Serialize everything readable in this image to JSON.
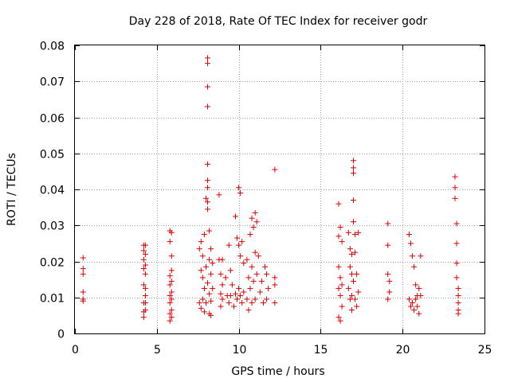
{
  "chart_data": {
    "type": "scatter",
    "title": "Day 228 of 2018, Rate Of TEC Index for receiver godr",
    "xlabel": "GPS time / hours",
    "ylabel": "ROTI / TECUs",
    "xlim": [
      0,
      25
    ],
    "ylim": [
      0,
      0.08
    ],
    "xticks": [
      0,
      5,
      10,
      15,
      20,
      25
    ],
    "xtick_labels": [
      "0",
      "5",
      "10",
      "15",
      "20",
      "25"
    ],
    "yticks": [
      0,
      0.01,
      0.02,
      0.03,
      0.04,
      0.05,
      0.06,
      0.07,
      0.08
    ],
    "ytick_labels": [
      "0",
      "0.01",
      "0.02",
      "0.03",
      "0.04",
      "0.05",
      "0.06",
      "0.07",
      "0.08"
    ],
    "grid": true,
    "marker": "+",
    "color": "#e00000",
    "series": [
      {
        "name": "ROTI",
        "x": [
          0.5,
          0.5,
          0.5,
          0.5,
          0.5,
          0.5,
          4.2,
          4.2,
          4.2,
          4.2,
          4.2,
          4.2,
          4.2,
          4.2,
          4.3,
          4.3,
          4.3,
          4.3,
          4.3,
          4.3,
          4.3,
          4.3,
          5.8,
          5.8,
          5.8,
          5.8,
          5.8,
          5.8,
          5.8,
          5.8,
          5.9,
          5.9,
          5.9,
          5.9,
          5.9,
          5.9,
          5.9,
          5.9,
          7.6,
          7.6,
          7.7,
          7.7,
          7.7,
          7.8,
          7.8,
          7.8,
          7.9,
          7.9,
          7.9,
          8.0,
          8.0,
          8.0,
          8.1,
          8.1,
          8.1,
          8.1,
          8.1,
          8.1,
          8.1,
          8.1,
          8.1,
          8.1,
          8.2,
          8.2,
          8.2,
          8.2,
          8.3,
          8.3,
          8.3,
          8.3,
          8.4,
          8.4,
          8.8,
          8.8,
          8.9,
          8.9,
          8.9,
          9.0,
          9.0,
          9.0,
          9.2,
          9.3,
          9.4,
          9.4,
          9.5,
          9.5,
          9.6,
          9.7,
          9.8,
          9.8,
          9.9,
          9.9,
          10.0,
          10.0,
          10.0,
          10.1,
          10.1,
          10.1,
          10.2,
          10.2,
          10.3,
          10.3,
          10.5,
          10.5,
          10.6,
          10.6,
          10.7,
          10.7,
          10.8,
          10.8,
          10.8,
          10.9,
          10.9,
          11.0,
          11.0,
          11.0,
          11.1,
          11.1,
          11.2,
          11.3,
          11.4,
          11.5,
          11.6,
          11.7,
          11.7,
          11.8,
          12.2,
          12.2,
          12.2,
          12.2,
          16.1,
          16.1,
          16.1,
          16.1,
          16.1,
          16.2,
          16.2,
          16.2,
          16.2,
          16.3,
          16.3,
          16.3,
          16.7,
          16.7,
          16.8,
          16.8,
          16.8,
          16.9,
          16.9,
          16.9,
          16.9,
          17.0,
          17.0,
          17.0,
          17.0,
          17.0,
          17.0,
          17.1,
          17.1,
          17.1,
          17.2,
          17.2,
          17.3,
          17.3,
          19.1,
          19.1,
          19.1,
          19.1,
          19.2,
          19.2,
          20.4,
          20.4,
          20.5,
          20.5,
          20.6,
          20.6,
          20.7,
          20.7,
          20.8,
          20.8,
          20.9,
          20.9,
          21.0,
          21.0,
          21.1,
          21.1,
          23.2,
          23.2,
          23.2,
          23.3,
          23.3,
          23.3,
          23.3,
          23.4,
          23.4,
          23.4,
          23.4,
          23.4
        ],
        "y": [
          0.021,
          0.018,
          0.0165,
          0.0115,
          0.0095,
          0.009,
          0.0245,
          0.023,
          0.0205,
          0.018,
          0.0135,
          0.0085,
          0.006,
          0.0045,
          0.0245,
          0.022,
          0.019,
          0.0165,
          0.0125,
          0.0105,
          0.0085,
          0.0065,
          0.0285,
          0.0255,
          0.016,
          0.0135,
          0.0105,
          0.0085,
          0.0055,
          0.0035,
          0.028,
          0.0215,
          0.0175,
          0.0145,
          0.0115,
          0.0095,
          0.0065,
          0.0045,
          0.0235,
          0.0085,
          0.0255,
          0.0175,
          0.007,
          0.0215,
          0.0155,
          0.0095,
          0.0275,
          0.0125,
          0.006,
          0.0375,
          0.0185,
          0.0085,
          0.0765,
          0.075,
          0.0685,
          0.063,
          0.047,
          0.0425,
          0.0405,
          0.0365,
          0.0345,
          0.014,
          0.0285,
          0.0205,
          0.011,
          0.0055,
          0.0235,
          0.0165,
          0.009,
          0.005,
          0.0195,
          0.0125,
          0.0385,
          0.0205,
          0.0165,
          0.011,
          0.0075,
          0.0205,
          0.0135,
          0.0095,
          0.0155,
          0.0105,
          0.0245,
          0.0085,
          0.0175,
          0.0105,
          0.0135,
          0.0075,
          0.0325,
          0.011,
          0.0265,
          0.0095,
          0.0405,
          0.0245,
          0.0125,
          0.039,
          0.0215,
          0.0105,
          0.0255,
          0.0085,
          0.0195,
          0.0115,
          0.0205,
          0.0095,
          0.0155,
          0.0065,
          0.0275,
          0.0125,
          0.032,
          0.0185,
          0.0085,
          0.0295,
          0.0145,
          0.0335,
          0.0225,
          0.0095,
          0.031,
          0.0165,
          0.0215,
          0.0115,
          0.0145,
          0.0085,
          0.0185,
          0.0165,
          0.0095,
          0.0125,
          0.0455,
          0.0155,
          0.0135,
          0.0085,
          0.036,
          0.027,
          0.0185,
          0.0125,
          0.0045,
          0.0295,
          0.0155,
          0.0105,
          0.0035,
          0.0255,
          0.0135,
          0.0075,
          0.028,
          0.0125,
          0.0235,
          0.0185,
          0.0095,
          0.022,
          0.0165,
          0.0105,
          0.0065,
          0.048,
          0.046,
          0.0445,
          0.037,
          0.031,
          0.0145,
          0.0275,
          0.0225,
          0.0095,
          0.0165,
          0.0075,
          0.028,
          0.0115,
          0.0305,
          0.0245,
          0.0165,
          0.0095,
          0.0145,
          0.0115,
          0.0275,
          0.0095,
          0.025,
          0.0075,
          0.0215,
          0.0085,
          0.0185,
          0.0065,
          0.0135,
          0.0095,
          0.0105,
          0.0075,
          0.0125,
          0.0055,
          0.0215,
          0.0105,
          0.0435,
          0.0405,
          0.0375,
          0.0305,
          0.025,
          0.0195,
          0.0155,
          0.0125,
          0.0105,
          0.0085,
          0.0065,
          0.0055
        ]
      }
    ]
  }
}
